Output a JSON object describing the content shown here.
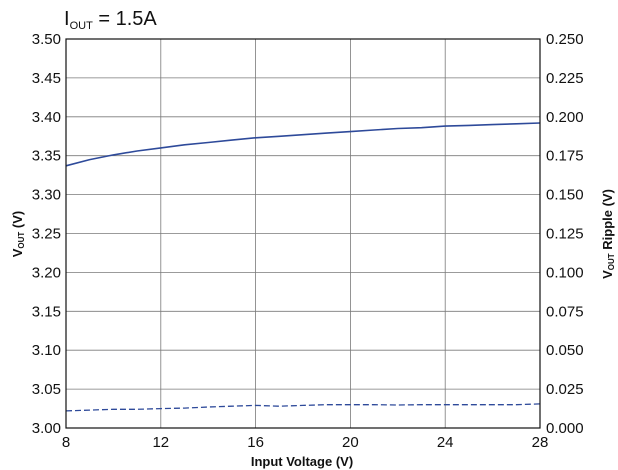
{
  "chart_data": {
    "type": "line",
    "annotation": {
      "main": "I",
      "sub": "OUT",
      "rest": " = 1.5A"
    },
    "xlabel": "Input  Voltage (V)",
    "ylabel_left": {
      "main": "V",
      "sub": "OUT",
      "rest": " (V)"
    },
    "ylabel_right": {
      "main": "V",
      "sub": "OUT",
      "rest": " Ripple (V)"
    },
    "xlim": [
      8,
      28
    ],
    "ylim_left": [
      3.0,
      3.5
    ],
    "ylim_right": [
      0.0,
      0.25
    ],
    "x_ticks": [
      "8",
      "12",
      "16",
      "20",
      "24",
      "28"
    ],
    "y_left_ticks": [
      "3.00",
      "3.05",
      "3.10",
      "3.15",
      "3.20",
      "3.25",
      "3.30",
      "3.35",
      "3.40",
      "3.45",
      "3.50"
    ],
    "y_right_ticks": [
      "0.000",
      "0.025",
      "0.050",
      "0.075",
      "0.100",
      "0.125",
      "0.150",
      "0.175",
      "0.200",
      "0.225",
      "0.250"
    ],
    "grid": true,
    "color": "#2e4a9a",
    "series": [
      {
        "axis": "left",
        "style": "solid",
        "x": [
          8,
          9,
          10,
          11,
          12,
          13,
          14,
          15,
          16,
          17,
          18,
          19,
          20,
          21,
          22,
          23,
          24,
          25,
          26,
          27,
          28
        ],
        "y": [
          3.337,
          3.345,
          3.351,
          3.356,
          3.36,
          3.364,
          3.367,
          3.37,
          3.373,
          3.375,
          3.377,
          3.379,
          3.381,
          3.383,
          3.385,
          3.386,
          3.388,
          3.389,
          3.39,
          3.391,
          3.392
        ]
      },
      {
        "axis": "right",
        "style": "dashed",
        "x": [
          8,
          9,
          10,
          11,
          12,
          13,
          14,
          15,
          16,
          17,
          18,
          19,
          20,
          21,
          22,
          23,
          24,
          25,
          26,
          27,
          28
        ],
        "y": [
          0.011,
          0.0115,
          0.012,
          0.012,
          0.0125,
          0.0128,
          0.0135,
          0.014,
          0.0145,
          0.014,
          0.0145,
          0.015,
          0.015,
          0.015,
          0.0148,
          0.015,
          0.015,
          0.015,
          0.015,
          0.015,
          0.0155
        ]
      }
    ]
  }
}
